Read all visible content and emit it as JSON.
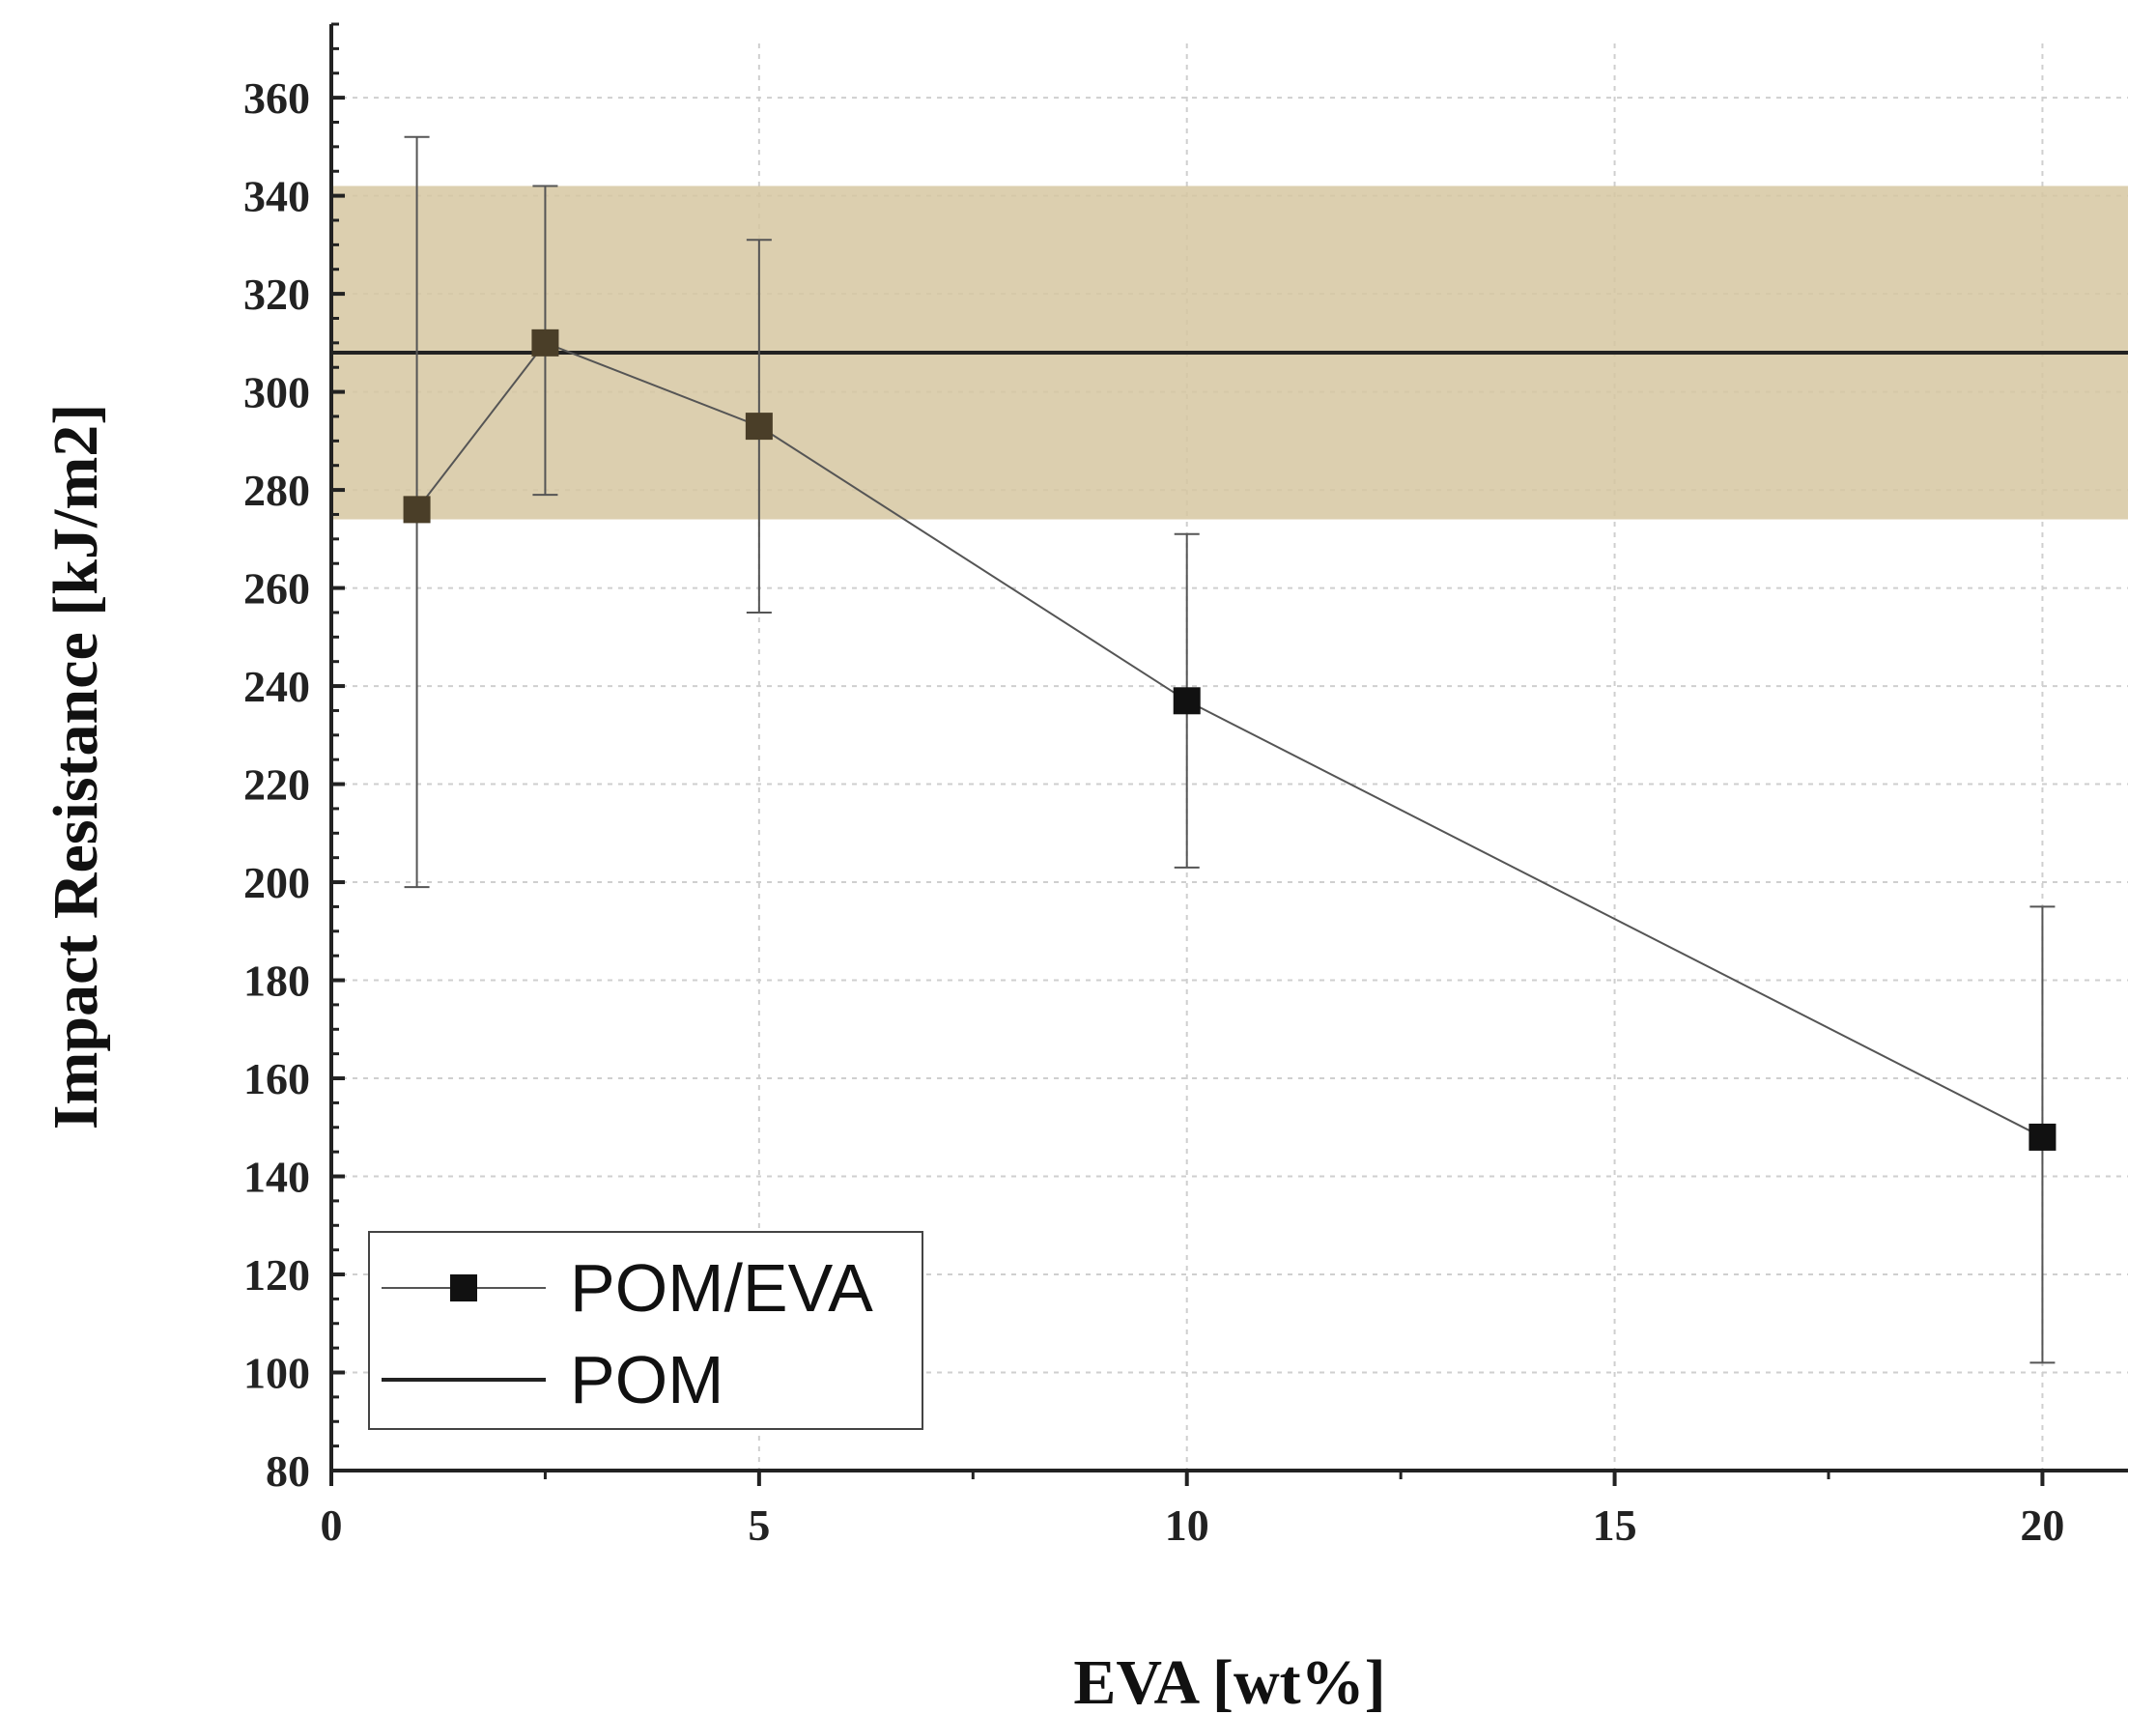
{
  "chart_data": {
    "type": "line",
    "xlabel": "EVA [wt%]",
    "ylabel": "Impact Resistance [kJ/m2]",
    "xlim": [
      0,
      21
    ],
    "ylim": [
      80,
      375
    ],
    "x_ticks": [
      "0",
      "5",
      "10",
      "15",
      "20"
    ],
    "y_ticks": [
      "80",
      "100",
      "120",
      "140",
      "160",
      "180",
      "200",
      "220",
      "240",
      "260",
      "280",
      "300",
      "320",
      "340",
      "360"
    ],
    "grid": true,
    "series": [
      {
        "name": "POM/EVA",
        "marker": "square",
        "x": [
          1,
          2.5,
          5,
          10,
          20
        ],
        "values": [
          276,
          310,
          293,
          237,
          148
        ],
        "error_low": [
          199,
          279,
          255,
          203,
          102
        ],
        "error_high": [
          352,
          342,
          331,
          271,
          195
        ]
      },
      {
        "name": "POM",
        "style": "horizontal-line",
        "value": 308,
        "band": [
          274,
          342
        ],
        "band_color": "#d6c7a1"
      }
    ],
    "legend": {
      "placement": "bottom-left",
      "entries": [
        "POM/EVA",
        "POM"
      ]
    }
  }
}
